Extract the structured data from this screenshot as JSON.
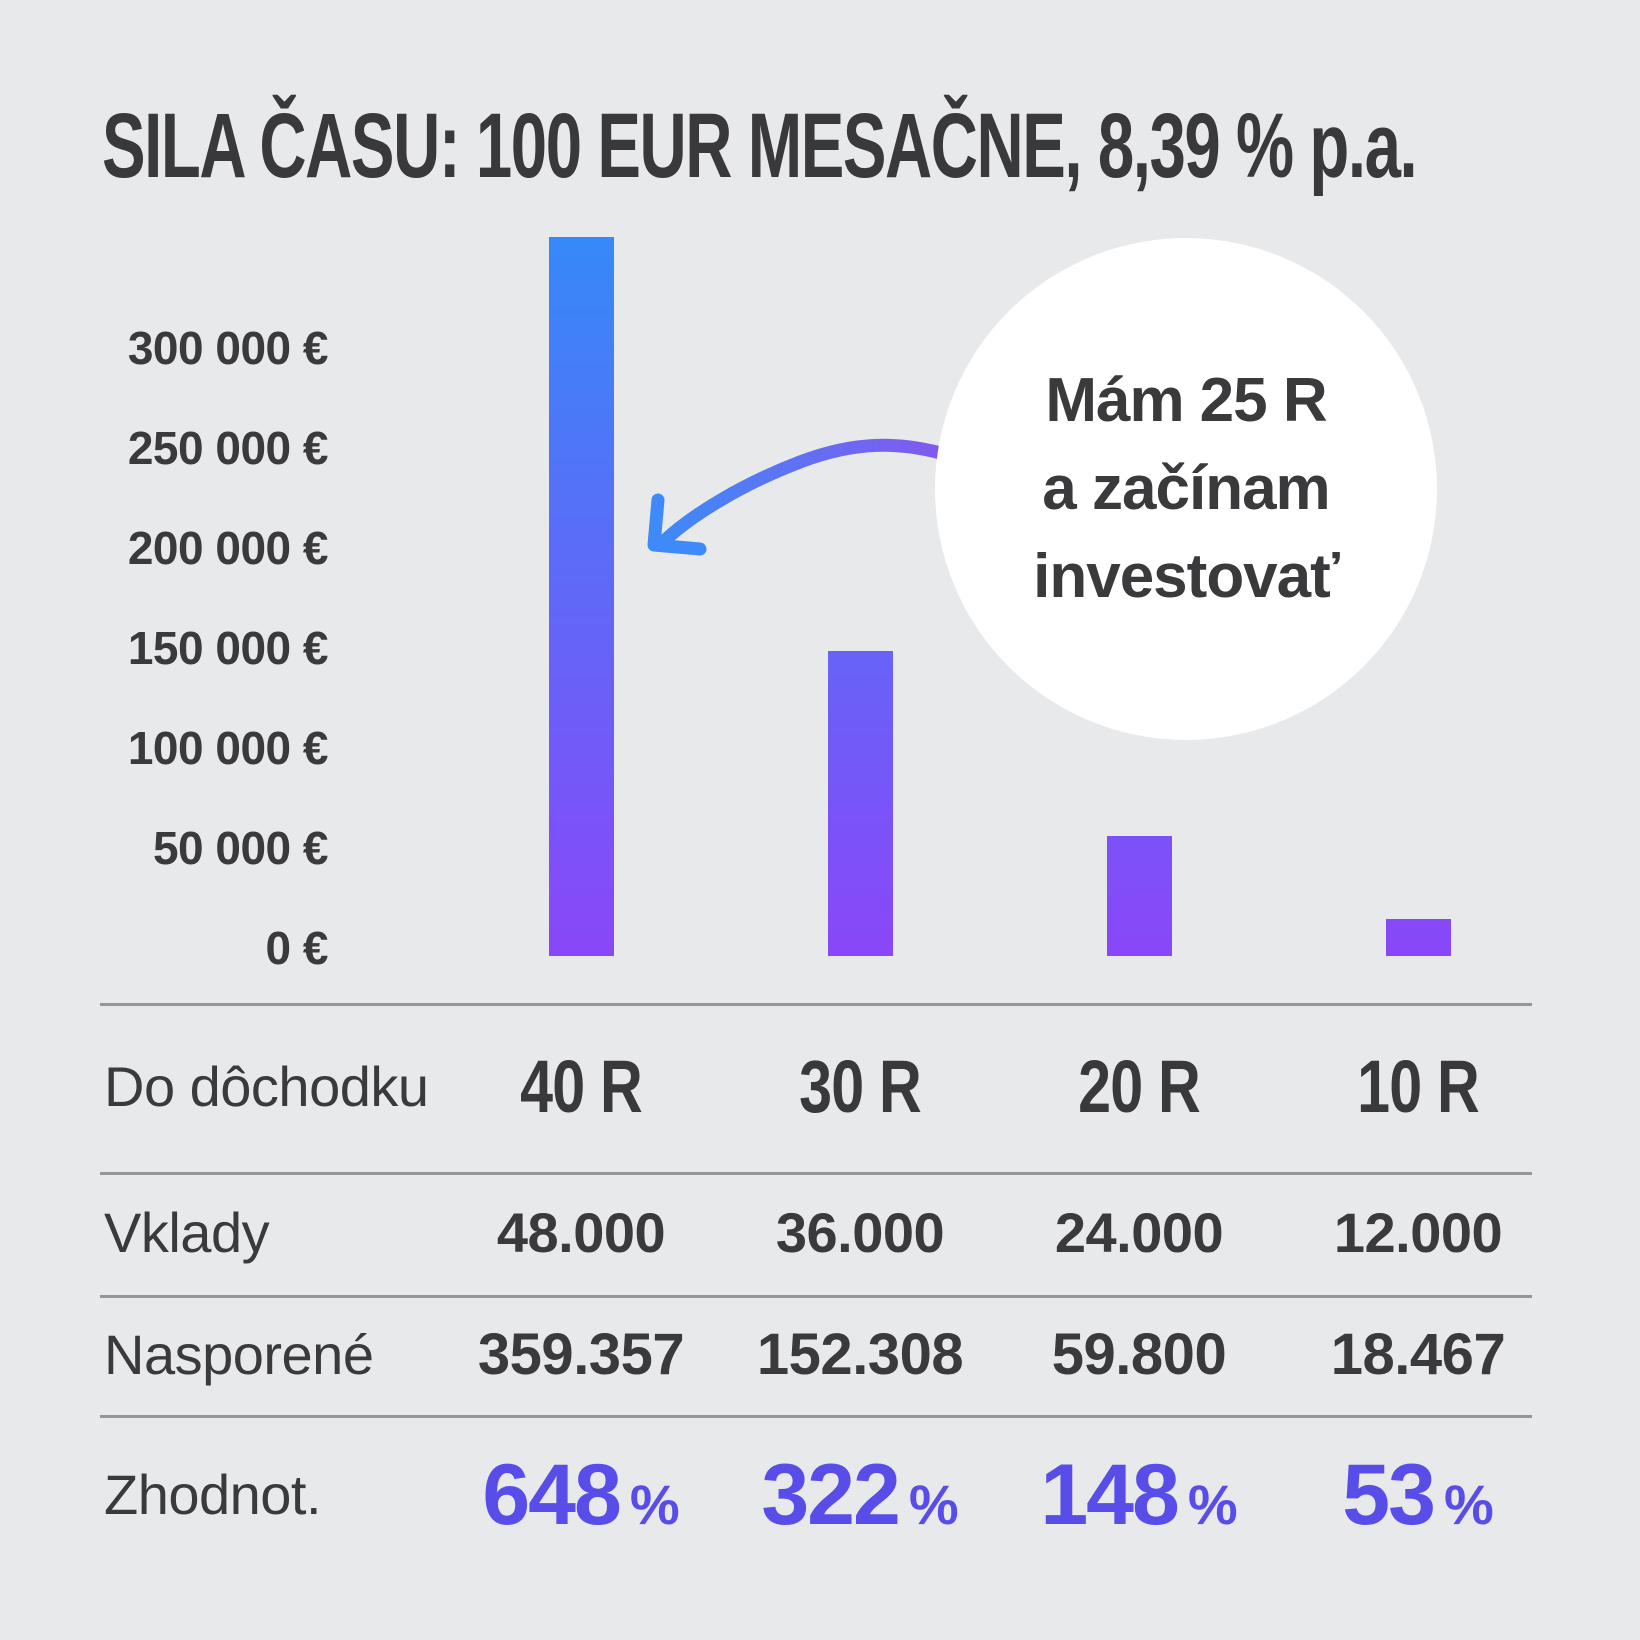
{
  "title": "SILA ČASU: 100 EUR MESAČNE, 8,39 % p.a.",
  "callout": {
    "intro": "Mám",
    "age": "25 R",
    "line2": "a začínam",
    "line3": "investovať"
  },
  "chart_data": {
    "type": "bar",
    "title": "SILA ČASU: 100 EUR MESAČNE, 8,39 % p.a.",
    "categories": [
      "40 R",
      "30 R",
      "20 R",
      "10 R"
    ],
    "values": [
      359357,
      152308,
      59800,
      18467
    ],
    "deposits": [
      48000,
      36000,
      24000,
      12000
    ],
    "growth_percent": [
      648,
      322,
      148,
      53
    ],
    "unit": "€",
    "ylim": [
      0,
      360000
    ],
    "grid": false,
    "legend": false,
    "y_ticks": [
      {
        "label": "300 000 €",
        "value": 300000
      },
      {
        "label": "250 000 €",
        "value": 250000
      },
      {
        "label": "200 000 €",
        "value": 200000
      },
      {
        "label": "150 000 €",
        "value": 150000
      },
      {
        "label": "100 000 €",
        "value": 100000
      },
      {
        "label": "50 000 €",
        "value": 50000
      },
      {
        "label": "0 €",
        "value": 0
      }
    ],
    "annotation": "Mám 25 R a začínam investovať"
  },
  "table": {
    "rows": [
      {
        "key": "do-dochodku",
        "label": "Do dôchodku",
        "style": "years",
        "values": [
          "40 R",
          "30 R",
          "20 R",
          "10 R"
        ]
      },
      {
        "key": "vklady",
        "label": "Vklady",
        "style": "num",
        "values": [
          "48.000",
          "36.000",
          "24.000",
          "12.000"
        ]
      },
      {
        "key": "nasporene",
        "label": "Nasporené",
        "style": "num-strong",
        "values": [
          "359.357",
          "152.308",
          "59.800",
          "18.467"
        ]
      },
      {
        "key": "zhodnot",
        "label": "Zhodnot.",
        "style": "pct",
        "values": [
          "648",
          "322",
          "148",
          "53"
        ],
        "suffix": "%"
      }
    ]
  },
  "colors": {
    "background": "#E8E9EB",
    "text": "#3A3A3C",
    "bar_top": "#3689F8",
    "bar_bottom": "#8A47F8",
    "percent": "#584DE8",
    "separator": "#95969A",
    "callout_bg": "#FFFFFF",
    "arrow_blue": "#3E8AF8",
    "arrow_purple": "#8457EF"
  }
}
